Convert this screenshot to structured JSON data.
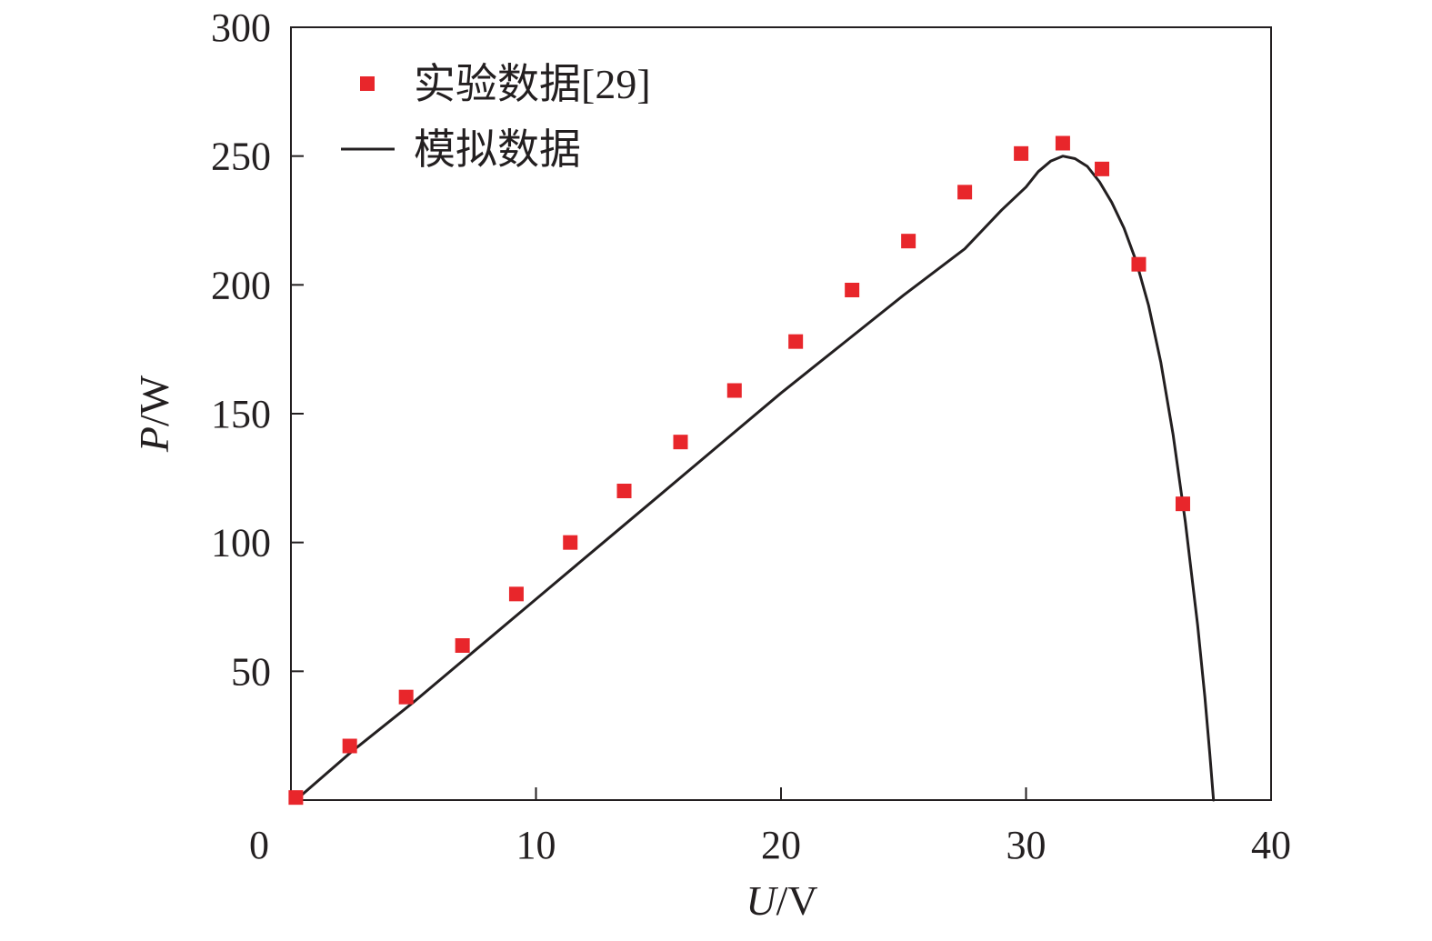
{
  "chart_data": {
    "type": "scatter",
    "title": "",
    "xlabel": {
      "var": "U",
      "unit": "/V"
    },
    "ylabel": {
      "var": "P",
      "unit": "/W"
    },
    "xlim": [
      0,
      40
    ],
    "ylim": [
      0,
      300
    ],
    "x_ticks": [
      0,
      10,
      20,
      30,
      40
    ],
    "x_tick_labels": [
      "0",
      "10",
      "20",
      "30",
      "40"
    ],
    "y_ticks": [
      50,
      100,
      150,
      200,
      250,
      300
    ],
    "y_tick_labels": [
      "50",
      "100",
      "150",
      "200",
      "250",
      "300"
    ],
    "grid": false,
    "legend_position": "top-left",
    "colors": {
      "experimental": "#e8262b",
      "simulated": "#231f20",
      "axis": "#231f20"
    },
    "series": [
      {
        "name": "实验数据[29]",
        "kind": "scatter",
        "marker": "square",
        "points": [
          [
            0.2,
            1
          ],
          [
            2.4,
            21
          ],
          [
            4.7,
            40
          ],
          [
            7.0,
            60
          ],
          [
            9.2,
            80
          ],
          [
            11.4,
            100
          ],
          [
            13.6,
            120
          ],
          [
            15.9,
            139
          ],
          [
            18.1,
            159
          ],
          [
            20.6,
            178
          ],
          [
            22.9,
            198
          ],
          [
            25.2,
            217
          ],
          [
            27.5,
            236
          ],
          [
            29.8,
            251
          ],
          [
            31.5,
            255
          ],
          [
            33.1,
            245
          ],
          [
            34.6,
            208
          ],
          [
            36.4,
            115
          ]
        ]
      },
      {
        "name": "模拟数据",
        "kind": "line",
        "points": [
          [
            0.2,
            0
          ],
          [
            2.5,
            19
          ],
          [
            5.0,
            38
          ],
          [
            7.5,
            58
          ],
          [
            10.0,
            78
          ],
          [
            12.5,
            98
          ],
          [
            15.0,
            118
          ],
          [
            17.5,
            138
          ],
          [
            20.0,
            158
          ],
          [
            22.5,
            177
          ],
          [
            25.0,
            196
          ],
          [
            27.5,
            214
          ],
          [
            29.0,
            229
          ],
          [
            30.0,
            238
          ],
          [
            30.5,
            244
          ],
          [
            31.0,
            248
          ],
          [
            31.5,
            250
          ],
          [
            32.0,
            249
          ],
          [
            32.5,
            246
          ],
          [
            33.0,
            240
          ],
          [
            33.5,
            232
          ],
          [
            34.0,
            222
          ],
          [
            34.5,
            209
          ],
          [
            35.0,
            192
          ],
          [
            35.5,
            170
          ],
          [
            36.0,
            142
          ],
          [
            36.5,
            108
          ],
          [
            37.0,
            68
          ],
          [
            37.3,
            40
          ],
          [
            37.5,
            18
          ],
          [
            37.65,
            0
          ]
        ]
      }
    ]
  }
}
